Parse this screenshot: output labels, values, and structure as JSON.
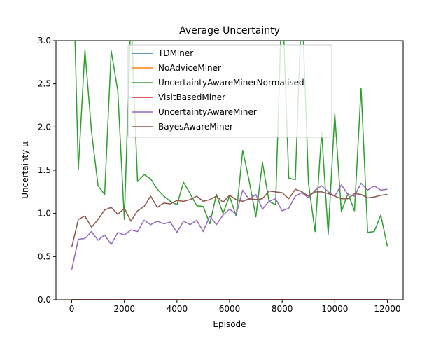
{
  "chart_data": {
    "type": "line",
    "title": "Average Uncertainty",
    "xlabel": "Episode",
    "ylabel": "Uncertainty μ",
    "xlim": [
      -600,
      12600
    ],
    "ylim": [
      0,
      3.0
    ],
    "xticks": [
      0,
      2000,
      4000,
      6000,
      8000,
      10000,
      12000
    ],
    "yticks": [
      0.0,
      0.5,
      1.0,
      1.5,
      2.0,
      2.5,
      3.0
    ],
    "xtick_labels": [
      "0",
      "2000",
      "4000",
      "6000",
      "8000",
      "10000",
      "12000"
    ],
    "ytick_labels": [
      "0.0",
      "0.5",
      "1.0",
      "1.5",
      "2.0",
      "2.5",
      "3.0"
    ],
    "grid": false,
    "legend_position": "upper center",
    "x": [
      0,
      250,
      500,
      750,
      1000,
      1250,
      1500,
      1750,
      2000,
      2250,
      2500,
      2750,
      3000,
      3250,
      3500,
      3750,
      4000,
      4250,
      4500,
      4750,
      5000,
      5250,
      5500,
      5750,
      6000,
      6250,
      6500,
      6750,
      7000,
      7250,
      7500,
      7750,
      8000,
      8250,
      8500,
      8750,
      9000,
      9250,
      9500,
      9750,
      10000,
      10250,
      10500,
      10750,
      11000,
      11250,
      11500,
      11750,
      12000
    ],
    "series": [
      {
        "name": "TDMiner",
        "color": "#1f77b4",
        "values": [
          0,
          0,
          0,
          0,
          0,
          0,
          0,
          0,
          0,
          0,
          0,
          0,
          0,
          0,
          0,
          0,
          0,
          0,
          0,
          0,
          0,
          0,
          0,
          0,
          0,
          0,
          0,
          0,
          0,
          0,
          0,
          0,
          0,
          0,
          0,
          0,
          0,
          0,
          0,
          0,
          0,
          0,
          0,
          0,
          0,
          0,
          0,
          0,
          0
        ]
      },
      {
        "name": "NoAdviceMiner",
        "color": "#ff7f0e",
        "values": [
          0,
          0,
          0,
          0,
          0,
          0,
          0,
          0,
          0,
          0,
          0,
          0,
          0,
          0,
          0,
          0,
          0,
          0,
          0,
          0,
          0,
          0,
          0,
          0,
          0,
          0,
          0,
          0,
          0,
          0,
          0,
          0,
          0,
          0,
          0,
          0,
          0,
          0,
          0,
          0,
          0,
          0,
          0,
          0,
          0,
          0,
          0,
          0,
          0
        ]
      },
      {
        "name": "UncertaintyAwareMinerNormalised",
        "color": "#2ca02c",
        "values": [
          4.5,
          1.51,
          2.89,
          1.95,
          1.32,
          1.22,
          2.88,
          2.42,
          0.93,
          3.3,
          1.37,
          1.45,
          1.4,
          1.28,
          1.2,
          1.14,
          1.1,
          1.36,
          1.23,
          1.09,
          1.08,
          0.88,
          1.22,
          1.0,
          1.2,
          0.97,
          1.73,
          1.37,
          0.96,
          1.59,
          1.14,
          1.1,
          3.6,
          1.41,
          1.39,
          3.5,
          1.35,
          0.79,
          1.94,
          0.76,
          2.15,
          1.02,
          1.23,
          1.03,
          2.45,
          0.78,
          0.79,
          0.98,
          0.62
        ]
      },
      {
        "name": "VisitBasedMiner",
        "color": "#d62728",
        "values": [
          0,
          0,
          0,
          0,
          0,
          0,
          0,
          0,
          0,
          0,
          0,
          0,
          0,
          0,
          0,
          0,
          0,
          0,
          0,
          0,
          0,
          0,
          0,
          0,
          0,
          0,
          0,
          0,
          0,
          0,
          0,
          0,
          0,
          0,
          0,
          0,
          0,
          0,
          0,
          0,
          0,
          0,
          0,
          0,
          0,
          0,
          0,
          0,
          0
        ]
      },
      {
        "name": "UncertaintyAwareMiner",
        "color": "#9467bd",
        "values": [
          0.35,
          0.7,
          0.71,
          0.79,
          0.69,
          0.75,
          0.64,
          0.78,
          0.75,
          0.81,
          0.79,
          0.92,
          0.87,
          0.91,
          0.88,
          0.9,
          0.78,
          0.91,
          0.87,
          0.92,
          0.79,
          0.97,
          0.87,
          0.98,
          1.05,
          0.99,
          1.27,
          1.16,
          1.22,
          1.05,
          1.14,
          1.17,
          1.03,
          1.06,
          1.2,
          1.24,
          1.18,
          1.27,
          1.32,
          1.25,
          1.2,
          1.33,
          1.22,
          1.2,
          1.35,
          1.27,
          1.32,
          1.27,
          1.28
        ]
      },
      {
        "name": "BayesAwareMiner",
        "color": "#8c564b",
        "values": [
          0.61,
          0.93,
          0.97,
          0.84,
          0.93,
          1.04,
          1.07,
          0.99,
          1.06,
          0.91,
          1.03,
          1.08,
          1.2,
          1.07,
          1.12,
          1.11,
          1.15,
          1.14,
          1.16,
          1.2,
          1.14,
          1.16,
          1.2,
          1.13,
          1.21,
          1.16,
          1.14,
          1.17,
          1.16,
          1.17,
          1.26,
          1.25,
          1.24,
          1.17,
          1.28,
          1.25,
          1.2,
          1.25,
          1.25,
          1.23,
          1.2,
          1.17,
          1.17,
          1.23,
          1.22,
          1.18,
          1.19,
          1.21,
          1.22
        ]
      }
    ]
  }
}
